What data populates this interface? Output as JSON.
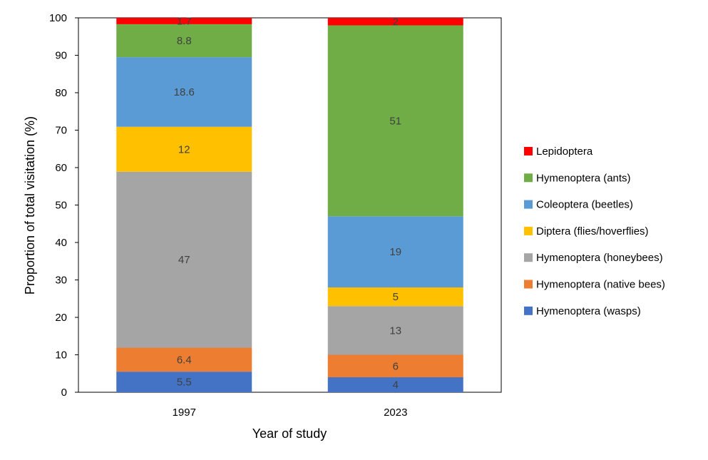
{
  "chart_data": {
    "type": "bar",
    "stacked": true,
    "title": "",
    "xlabel": "Year of study",
    "ylabel": "Proportion of total visitation (%)",
    "ylim": [
      0,
      100
    ],
    "yticks": [
      0,
      10,
      20,
      30,
      40,
      50,
      60,
      70,
      80,
      90,
      100
    ],
    "ytick_labels": [
      "0",
      "10",
      "20",
      "30",
      "40",
      "50",
      "60",
      "70",
      "80",
      "90",
      "100"
    ],
    "categories": [
      "1997",
      "2023"
    ],
    "grid": false,
    "legend_position": "right",
    "series": [
      {
        "name": "Hymenoptera (wasps)",
        "color": "#4472C4",
        "values": [
          5.5,
          4
        ],
        "labels": [
          "5.5",
          "4"
        ]
      },
      {
        "name": "Hymenoptera (native bees)",
        "color": "#ED7D31",
        "values": [
          6.4,
          6
        ],
        "labels": [
          "6.4",
          "6"
        ]
      },
      {
        "name": "Hymenoptera (honeybees)",
        "color": "#A5A5A5",
        "values": [
          47,
          13
        ],
        "labels": [
          "47",
          "13"
        ]
      },
      {
        "name": "Diptera (flies/hoverflies)",
        "color": "#FFC000",
        "values": [
          12,
          5
        ],
        "labels": [
          "12",
          "5"
        ]
      },
      {
        "name": "Coleoptera (beetles)",
        "color": "#5B9BD5",
        "values": [
          18.6,
          19
        ],
        "labels": [
          "18.6",
          "19"
        ]
      },
      {
        "name": "Hymenoptera (ants)",
        "color": "#70AD47",
        "values": [
          8.8,
          51
        ],
        "labels": [
          "8.8",
          "51"
        ]
      },
      {
        "name": "Lepidoptera",
        "color": "#FF0000",
        "values": [
          1.7,
          2
        ],
        "labels": [
          "1.7",
          "2"
        ]
      }
    ]
  }
}
